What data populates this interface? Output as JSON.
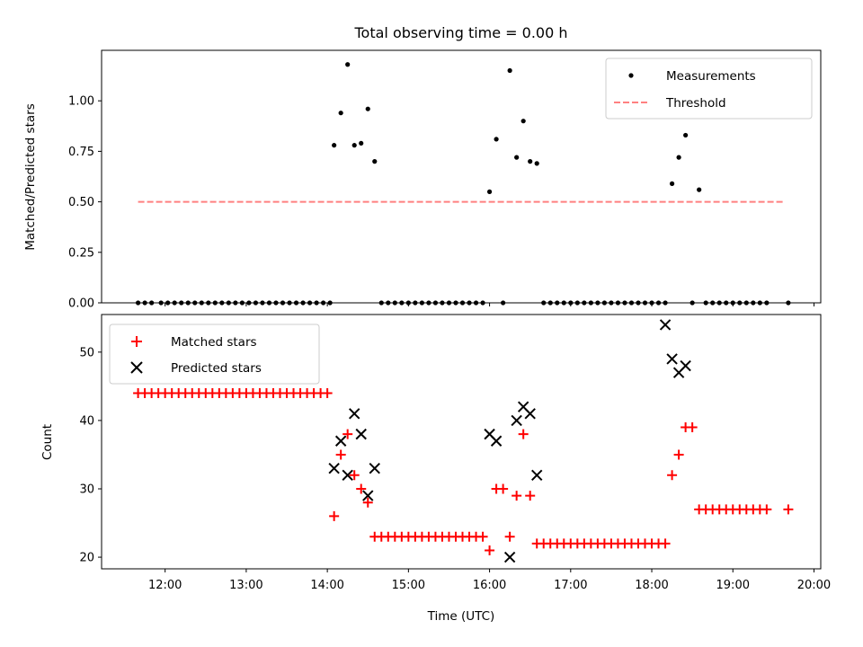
{
  "figure": {
    "title": "Total observing time = 0.00 h"
  },
  "chart_data": [
    {
      "type": "scatter",
      "ylabel": "Matched/Predicted stars",
      "xlabel": "",
      "xlim": [
        "11:13",
        "20:05"
      ],
      "ylim": [
        0.0,
        1.25
      ],
      "yticks": [
        0.0,
        0.25,
        0.5,
        0.75,
        1.0
      ],
      "ytick_labels": [
        "0.00",
        "0.25",
        "0.50",
        "0.75",
        "1.00"
      ],
      "grid": false,
      "legend_position": "top-right",
      "series": [
        {
          "name": "Measurements",
          "kind": "scatter",
          "marker": "dot",
          "color": "#000000",
          "x": [
            "11:40",
            "11:45",
            "11:50",
            "11:57",
            "12:02",
            "12:07",
            "12:12",
            "12:17",
            "12:22",
            "12:27",
            "12:32",
            "12:37",
            "12:42",
            "12:47",
            "12:52",
            "12:57",
            "13:02",
            "13:07",
            "13:12",
            "13:17",
            "13:22",
            "13:27",
            "13:32",
            "13:37",
            "13:42",
            "13:47",
            "13:52",
            "13:57",
            "14:02",
            "14:05",
            "14:10",
            "14:15",
            "14:20",
            "14:25",
            "14:30",
            "14:35",
            "14:40",
            "14:45",
            "14:50",
            "14:55",
            "15:00",
            "15:05",
            "15:10",
            "15:15",
            "15:20",
            "15:25",
            "15:30",
            "15:35",
            "15:40",
            "15:45",
            "15:50",
            "15:55",
            "16:00",
            "16:05",
            "16:10",
            "16:15",
            "16:20",
            "16:25",
            "16:30",
            "16:35",
            "16:40",
            "16:45",
            "16:50",
            "16:55",
            "17:00",
            "17:05",
            "17:10",
            "17:15",
            "17:20",
            "17:25",
            "17:30",
            "17:35",
            "17:40",
            "17:45",
            "17:50",
            "17:55",
            "18:00",
            "18:05",
            "18:10",
            "18:15",
            "18:20",
            "18:25",
            "18:30",
            "18:35",
            "18:40",
            "18:45",
            "18:50",
            "18:55",
            "19:00",
            "19:05",
            "19:10",
            "19:15",
            "19:20",
            "19:25",
            "19:41"
          ],
          "y": [
            0,
            0,
            0,
            0,
            0,
            0,
            0,
            0,
            0,
            0,
            0,
            0,
            0,
            0,
            0,
            0,
            0,
            0,
            0,
            0,
            0,
            0,
            0,
            0,
            0,
            0,
            0,
            0,
            0,
            0.78,
            0.94,
            1.18,
            0.78,
            0.79,
            0.96,
            0.7,
            0,
            0,
            0,
            0,
            0,
            0,
            0,
            0,
            0,
            0,
            0,
            0,
            0,
            0,
            0,
            0,
            0.55,
            0.81,
            0,
            1.15,
            0.72,
            0.9,
            0.7,
            0.69,
            0,
            0,
            0,
            0,
            0,
            0,
            0,
            0,
            0,
            0,
            0,
            0,
            0,
            0,
            0,
            0,
            0,
            0,
            0,
            0.59,
            0.72,
            0.83,
            0,
            0.56,
            0,
            0,
            0,
            0,
            0,
            0,
            0,
            0,
            0,
            0,
            0
          ]
        },
        {
          "name": "Threshold",
          "kind": "line",
          "style": "dashed",
          "color": "#ff8080",
          "x": [
            "11:40",
            "19:38"
          ],
          "y": [
            0.5,
            0.5
          ]
        }
      ]
    },
    {
      "type": "scatter",
      "ylabel": "Count",
      "xlabel": "Time (UTC)",
      "xlim": [
        "11:13",
        "20:05"
      ],
      "ylim": [
        18.3,
        55.5
      ],
      "yticks": [
        20,
        30,
        40,
        50
      ],
      "ytick_labels": [
        "20",
        "30",
        "40",
        "50"
      ],
      "xticks": [
        "12:00",
        "13:00",
        "14:00",
        "15:00",
        "16:00",
        "17:00",
        "18:00",
        "19:00",
        "20:00"
      ],
      "grid": false,
      "legend_position": "top-left",
      "series": [
        {
          "name": "Matched stars",
          "kind": "scatter",
          "marker": "plus",
          "color": "#ff0000",
          "x": [
            "11:40",
            "11:45",
            "11:50",
            "11:55",
            "12:00",
            "12:05",
            "12:10",
            "12:15",
            "12:20",
            "12:25",
            "12:30",
            "12:35",
            "12:40",
            "12:45",
            "12:50",
            "12:55",
            "13:00",
            "13:05",
            "13:10",
            "13:15",
            "13:20",
            "13:25",
            "13:30",
            "13:35",
            "13:40",
            "13:45",
            "13:50",
            "13:55",
            "14:00",
            "14:05",
            "14:10",
            "14:15",
            "14:20",
            "14:25",
            "14:30",
            "14:35",
            "14:40",
            "14:45",
            "14:50",
            "14:55",
            "15:00",
            "15:05",
            "15:10",
            "15:15",
            "15:20",
            "15:25",
            "15:30",
            "15:35",
            "15:40",
            "15:45",
            "15:50",
            "15:55",
            "16:00",
            "16:05",
            "16:10",
            "16:15",
            "16:20",
            "16:25",
            "16:30",
            "16:35",
            "16:40",
            "16:45",
            "16:50",
            "16:55",
            "17:00",
            "17:05",
            "17:10",
            "17:15",
            "17:20",
            "17:25",
            "17:30",
            "17:35",
            "17:40",
            "17:45",
            "17:50",
            "17:55",
            "18:00",
            "18:05",
            "18:10",
            "18:15",
            "18:20",
            "18:25",
            "18:30",
            "18:35",
            "18:40",
            "18:45",
            "18:50",
            "18:55",
            "19:00",
            "19:05",
            "19:10",
            "19:15",
            "19:20",
            "19:25",
            "19:41"
          ],
          "y": [
            44,
            44,
            44,
            44,
            44,
            44,
            44,
            44,
            44,
            44,
            44,
            44,
            44,
            44,
            44,
            44,
            44,
            44,
            44,
            44,
            44,
            44,
            44,
            44,
            44,
            44,
            44,
            44,
            44,
            26,
            35,
            38,
            32,
            30,
            28,
            23,
            23,
            23,
            23,
            23,
            23,
            23,
            23,
            23,
            23,
            23,
            23,
            23,
            23,
            23,
            23,
            23,
            21,
            30,
            30,
            23,
            29,
            38,
            29,
            22,
            22,
            22,
            22,
            22,
            22,
            22,
            22,
            22,
            22,
            22,
            22,
            22,
            22,
            22,
            22,
            22,
            22,
            22,
            22,
            32,
            35,
            39,
            39,
            27,
            27,
            27,
            27,
            27,
            27,
            27,
            27,
            27,
            27,
            27,
            27
          ]
        },
        {
          "name": "Predicted stars",
          "kind": "scatter",
          "marker": "x",
          "color": "#000000",
          "x": [
            "14:05",
            "14:10",
            "14:15",
            "14:20",
            "14:25",
            "14:30",
            "14:35",
            "16:00",
            "16:05",
            "16:15",
            "16:20",
            "16:25",
            "16:30",
            "16:35",
            "18:10",
            "18:15",
            "18:20",
            "18:25"
          ],
          "y": [
            33,
            37,
            32,
            41,
            38,
            29,
            33,
            38,
            37,
            20,
            40,
            42,
            41,
            32,
            54,
            49,
            47,
            48
          ]
        }
      ]
    }
  ]
}
